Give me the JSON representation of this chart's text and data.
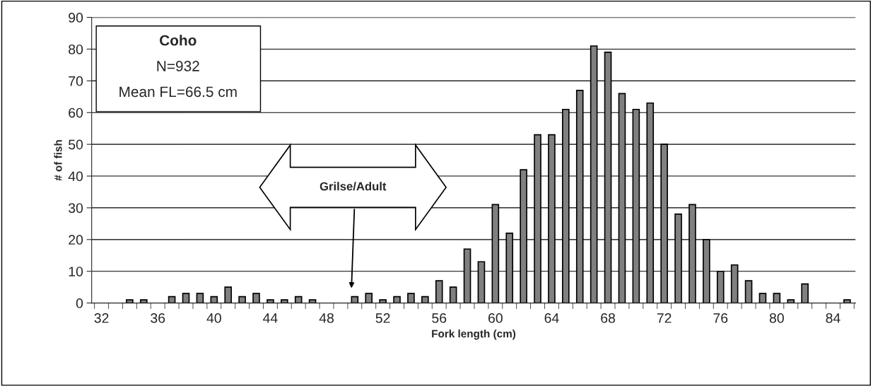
{
  "chart_data": {
    "type": "bar",
    "title": "Coho",
    "xlabel": "Fork length (cm)",
    "ylabel": "# of fish",
    "categories": [
      "32",
      null,
      null,
      null,
      "36",
      null,
      null,
      null,
      "40",
      null,
      null,
      null,
      "44",
      null,
      null,
      null,
      "48",
      null,
      null,
      null,
      "52",
      null,
      null,
      null,
      "56",
      null,
      null,
      null,
      "60",
      null,
      null,
      null,
      "64",
      null,
      null,
      null,
      "68",
      null,
      null,
      null,
      "72",
      null,
      null,
      null,
      "76",
      null,
      null,
      null,
      "80",
      null,
      null,
      null,
      "84",
      null
    ],
    "values": [
      0,
      0,
      1,
      1,
      0,
      2,
      3,
      3,
      2,
      5,
      2,
      3,
      1,
      1,
      2,
      1,
      0,
      0,
      2,
      3,
      1,
      2,
      3,
      2,
      7,
      5,
      17,
      13,
      31,
      22,
      42,
      53,
      53,
      61,
      67,
      81,
      79,
      66,
      61,
      63,
      50,
      28,
      31,
      20,
      10,
      12,
      7,
      3,
      3,
      1,
      6,
      0,
      0,
      1
    ],
    "color": "#808080",
    "ylim": [
      0,
      90
    ],
    "yticks": [
      0,
      10,
      20,
      30,
      40,
      50,
      60,
      70,
      80,
      90
    ],
    "grid": "y",
    "annotations": [
      "N=932",
      "Mean FL=66.5 cm",
      "Grilse/Adult"
    ]
  }
}
